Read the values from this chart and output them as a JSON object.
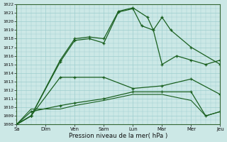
{
  "background_color": "#cce8e6",
  "grid_color": "#9ecece",
  "line_color": "#1a6020",
  "xlabel": "Pression niveau de la mer( hPa )",
  "x_labels": [
    "Sa",
    "Dim",
    "Ven",
    "Sam",
    "Lun",
    "Mar",
    "Mer",
    "Jeu"
  ],
  "xlim": [
    0,
    7
  ],
  "ylim": [
    1008,
    1022
  ],
  "yticks": [
    1008,
    1009,
    1010,
    1011,
    1012,
    1013,
    1014,
    1015,
    1016,
    1017,
    1018,
    1019,
    1020,
    1021,
    1022
  ],
  "line_upper1_x": [
    0,
    0.5,
    1.5,
    2.0,
    2.5,
    3.0,
    3.5,
    4.0,
    4.3,
    4.7,
    5.0,
    5.5,
    6.0,
    6.5,
    7.0
  ],
  "line_upper1_y": [
    1008.0,
    1009.0,
    1015.3,
    1017.8,
    1018.0,
    1017.5,
    1021.1,
    1021.5,
    1019.5,
    1019.0,
    1015.0,
    1016.0,
    1015.5,
    1015.0,
    1015.5
  ],
  "line_upper2_x": [
    0,
    0.5,
    1.5,
    2.0,
    2.5,
    3.0,
    3.5,
    4.0,
    4.5,
    4.7,
    5.0,
    5.3,
    6.0,
    7.0
  ],
  "line_upper2_y": [
    1008.0,
    1009.0,
    1015.5,
    1018.0,
    1018.2,
    1018.0,
    1021.2,
    1021.6,
    1020.5,
    1019.0,
    1020.5,
    1019.0,
    1017.0,
    1015.0
  ],
  "line_mid_x": [
    0,
    0.5,
    1.5,
    2.0,
    3.0,
    4.0,
    5.0,
    6.0,
    7.0
  ],
  "line_mid_y": [
    1008.0,
    1009.0,
    1013.5,
    1013.5,
    1013.5,
    1012.2,
    1012.5,
    1013.3,
    1011.5
  ],
  "line_low1_x": [
    0,
    0.5,
    1.5,
    2.0,
    3.0,
    4.0,
    5.0,
    6.0,
    6.5,
    7.0
  ],
  "line_low1_y": [
    1008.0,
    1009.5,
    1010.2,
    1010.5,
    1011.0,
    1011.8,
    1011.8,
    1011.8,
    1009.0,
    1009.5
  ],
  "line_low2_x": [
    0,
    0.5,
    1.5,
    2.0,
    3.0,
    4.0,
    5.0,
    6.0,
    6.5,
    7.0
  ],
  "line_low2_y": [
    1008.0,
    1009.8,
    1009.8,
    1010.2,
    1010.8,
    1011.5,
    1011.5,
    1010.8,
    1009.0,
    1009.5
  ]
}
